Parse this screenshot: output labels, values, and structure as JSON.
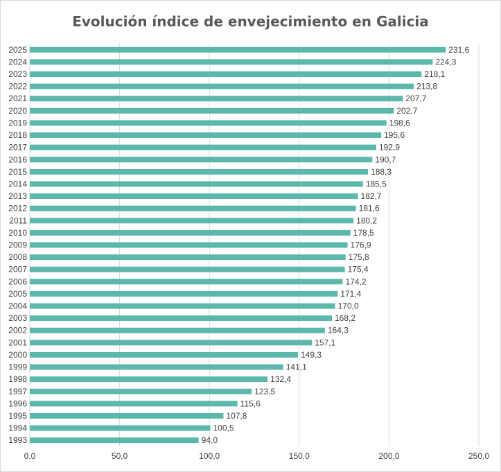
{
  "chart_data": {
    "type": "bar",
    "orientation": "horizontal",
    "title": "Evolución índice de envejecimiento en Galicia",
    "xlabel": "",
    "ylabel": "",
    "xlim": [
      0,
      250
    ],
    "x_ticks": [
      0,
      50,
      100,
      150,
      200,
      250
    ],
    "x_tick_labels": [
      "0,0",
      "50,0",
      "100,0",
      "150,0",
      "200,0",
      "250,0"
    ],
    "grid": true,
    "bar_color": "#5bb8aa",
    "categories": [
      "2025",
      "2024",
      "2023",
      "2022",
      "2021",
      "2020",
      "2019",
      "2018",
      "2017",
      "2016",
      "2015",
      "2014",
      "2013",
      "2012",
      "2011",
      "2010",
      "2009",
      "2008",
      "2007",
      "2006",
      "2005",
      "2004",
      "2003",
      "2002",
      "2001",
      "2000",
      "1999",
      "1998",
      "1997",
      "1996",
      "1995",
      "1994",
      "1993"
    ],
    "values": [
      231.6,
      224.3,
      218.1,
      213.8,
      207.7,
      202.7,
      198.6,
      195.6,
      192.9,
      190.7,
      188.3,
      185.5,
      182.7,
      181.6,
      180.2,
      178.5,
      176.9,
      175.8,
      175.4,
      174.2,
      171.4,
      170.0,
      168.2,
      164.3,
      157.1,
      149.3,
      141.1,
      132.4,
      123.5,
      115.6,
      107.8,
      100.5,
      94.0
    ],
    "value_labels": [
      "231,6",
      "224,3",
      "218,1",
      "213,8",
      "207,7",
      "202,7",
      "198,6",
      "195,6",
      "192,9",
      "190,7",
      "188,3",
      "185,5",
      "182,7",
      "181,6",
      "180,2",
      "178,5",
      "176,9",
      "175,8",
      "175,4",
      "174,2",
      "171,4",
      "170,0",
      "168,2",
      "164,3",
      "157,1",
      "149,3",
      "141,1",
      "132,4",
      "123,5",
      "115,6",
      "107,8",
      "100,5",
      "94,0"
    ]
  }
}
